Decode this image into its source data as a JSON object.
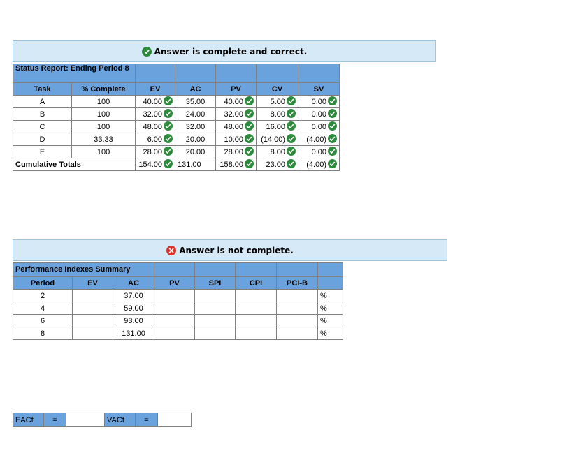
{
  "status_banner": {
    "text": "Answer is complete and correct."
  },
  "status_table": {
    "title": "Status Report: Ending Period 8",
    "headers": [
      "Task",
      "% Complete",
      "EV",
      "AC",
      "PV",
      "CV",
      "SV"
    ],
    "rows": [
      {
        "task": "A",
        "pct": "100",
        "ev": "40.00",
        "ac": "35.00",
        "pv": "40.00",
        "cv": "5.00",
        "sv": "0.00"
      },
      {
        "task": "B",
        "pct": "100",
        "ev": "32.00",
        "ac": "24.00",
        "pv": "32.00",
        "cv": "8.00",
        "sv": "0.00"
      },
      {
        "task": "C",
        "pct": "100",
        "ev": "48.00",
        "ac": "32.00",
        "pv": "48.00",
        "cv": "16.00",
        "sv": "0.00"
      },
      {
        "task": "D",
        "pct": "33.33",
        "ev": "6.00",
        "ac": "20.00",
        "pv": "10.00",
        "cv": "(14.00)",
        "sv": "(4.00)"
      },
      {
        "task": "E",
        "pct": "100",
        "ev": "28.00",
        "ac": "20.00",
        "pv": "28.00",
        "cv": "8.00",
        "sv": "0.00"
      }
    ],
    "totals": {
      "label": "Cumulative Totals",
      "ev": "154.00",
      "ac": "131.00",
      "pv": "158.00",
      "cv": "23.00",
      "sv": "(4.00)"
    }
  },
  "perf_banner": {
    "text": "Answer is not complete.",
    "icon": "×"
  },
  "perf_table": {
    "title": "Performance Indexes Summary",
    "headers": [
      "Period",
      "EV",
      "AC",
      "PV",
      "SPI",
      "CPI",
      "PCI-B",
      ""
    ],
    "rows": [
      {
        "period": "2",
        "ac": "37.00",
        "unit": "%"
      },
      {
        "period": "4",
        "ac": "59.00",
        "unit": "%"
      },
      {
        "period": "6",
        "ac": "93.00",
        "unit": "%"
      },
      {
        "period": "8",
        "ac": "131.00",
        "unit": "%"
      }
    ]
  },
  "eac_row": {
    "eac_label": "EACf",
    "eq": "=",
    "vac_label": "VACf"
  },
  "colors": {
    "header_blue": "#6aa2dd",
    "banner_bg": "#d6e9f7",
    "check_green": "#2e8b3e",
    "error_red": "#d9342b"
  }
}
